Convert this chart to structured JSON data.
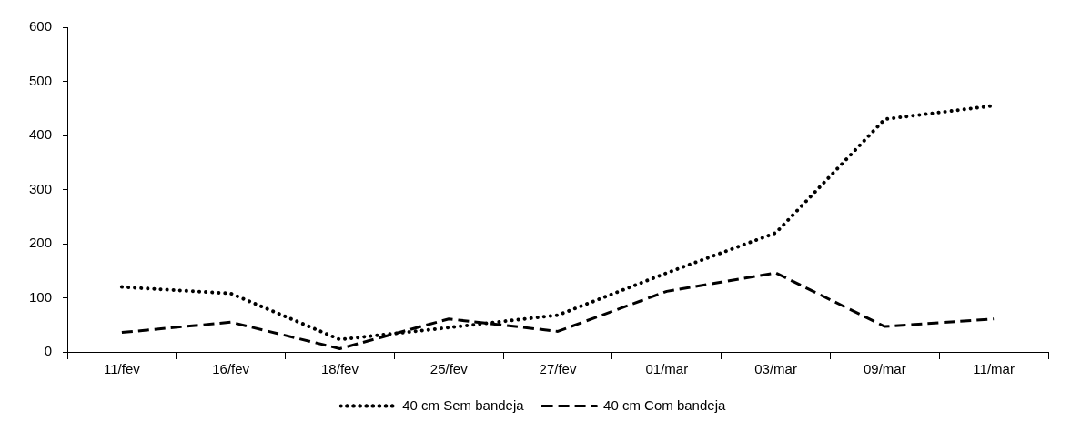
{
  "chart_data": {
    "type": "line",
    "categories": [
      "11/fev",
      "16/fev",
      "18/fev",
      "25/fev",
      "27/fev",
      "01/mar",
      "03/mar",
      "09/mar",
      "11/mar"
    ],
    "series": [
      {
        "name": "40 cm Sem bandeja",
        "color": "#000000",
        "line_style": "dotted",
        "values": [
          120,
          108,
          23,
          45,
          68,
          146,
          220,
          430,
          455
        ]
      },
      {
        "name": "40 cm Com bandeja",
        "color": "#000000",
        "line_style": "dashed",
        "values": [
          36,
          55,
          6,
          61,
          38,
          112,
          146,
          47,
          61
        ]
      }
    ],
    "ylim": [
      0,
      600
    ],
    "yticks": [
      0,
      100,
      200,
      300,
      400,
      500,
      600
    ],
    "grid": false,
    "legend": "bottom",
    "marker": "none"
  }
}
